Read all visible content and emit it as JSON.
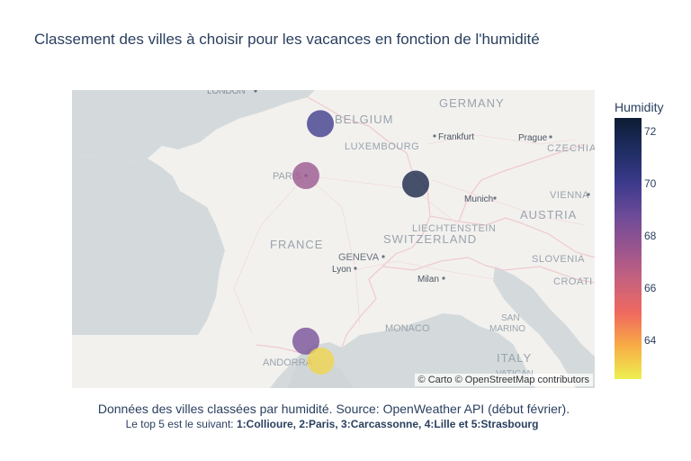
{
  "title": "Classement des villes à choisir pour les vacances en fonction de l'humidité",
  "attribution": "© Carto © OpenStreetMap contributors",
  "colorbar": {
    "title": "Humidity",
    "ticks": [
      72,
      70,
      68,
      66,
      64
    ],
    "range": [
      62.5,
      72.5
    ],
    "colorscale": [
      "#edf050",
      "#f8ad45",
      "#f06a5e",
      "#c8627d",
      "#9a558e",
      "#6d4b98",
      "#3c3a8c",
      "#1f2d63",
      "#0c1c33"
    ]
  },
  "map_labels": [
    "LONDON",
    "BELGIUM",
    "GERMANY",
    "LUXEMBOURG",
    "Frankfurt",
    "Prague",
    "CZECHIA",
    "PARIS",
    "Munich",
    "VIENNA",
    "LIECHTENSTEIN",
    "AUSTRIA",
    "FRANCE",
    "GENEVA",
    "SWITZERLAND",
    "Lyon",
    "SLOVENIA",
    "Milan",
    "CROATI",
    "SAN",
    "MARINO",
    "MONACO",
    "ANDORRA",
    "ITALY",
    "VATICAN"
  ],
  "footnote": {
    "line1": "Données des villes classées par humidité. Source: OpenWeather API (début février).",
    "line2_prefix": "Le top 5 est le suivant:  ",
    "line2_bold": "1:Collioure, 2:Paris, 3:Carcassonne, 4:Lille et 5:Strasbourg"
  },
  "chart_data": {
    "type": "scatter",
    "map": "scatter_mapbox",
    "title": "Classement des villes à choisir pour les vacances en fonction de l'humidité",
    "color_label": "Humidity",
    "points": [
      {
        "lon": 3.06,
        "lat": 50.63,
        "humidity": 70
      },
      {
        "lon": 2.35,
        "lat": 48.86,
        "humidity": 67.5
      },
      {
        "lon": 7.75,
        "lat": 48.57,
        "humidity": 72
      },
      {
        "lon": 2.35,
        "lat": 43.21,
        "humidity": 68.5
      },
      {
        "lon": 3.08,
        "lat": 42.53,
        "humidity": 63
      }
    ]
  }
}
